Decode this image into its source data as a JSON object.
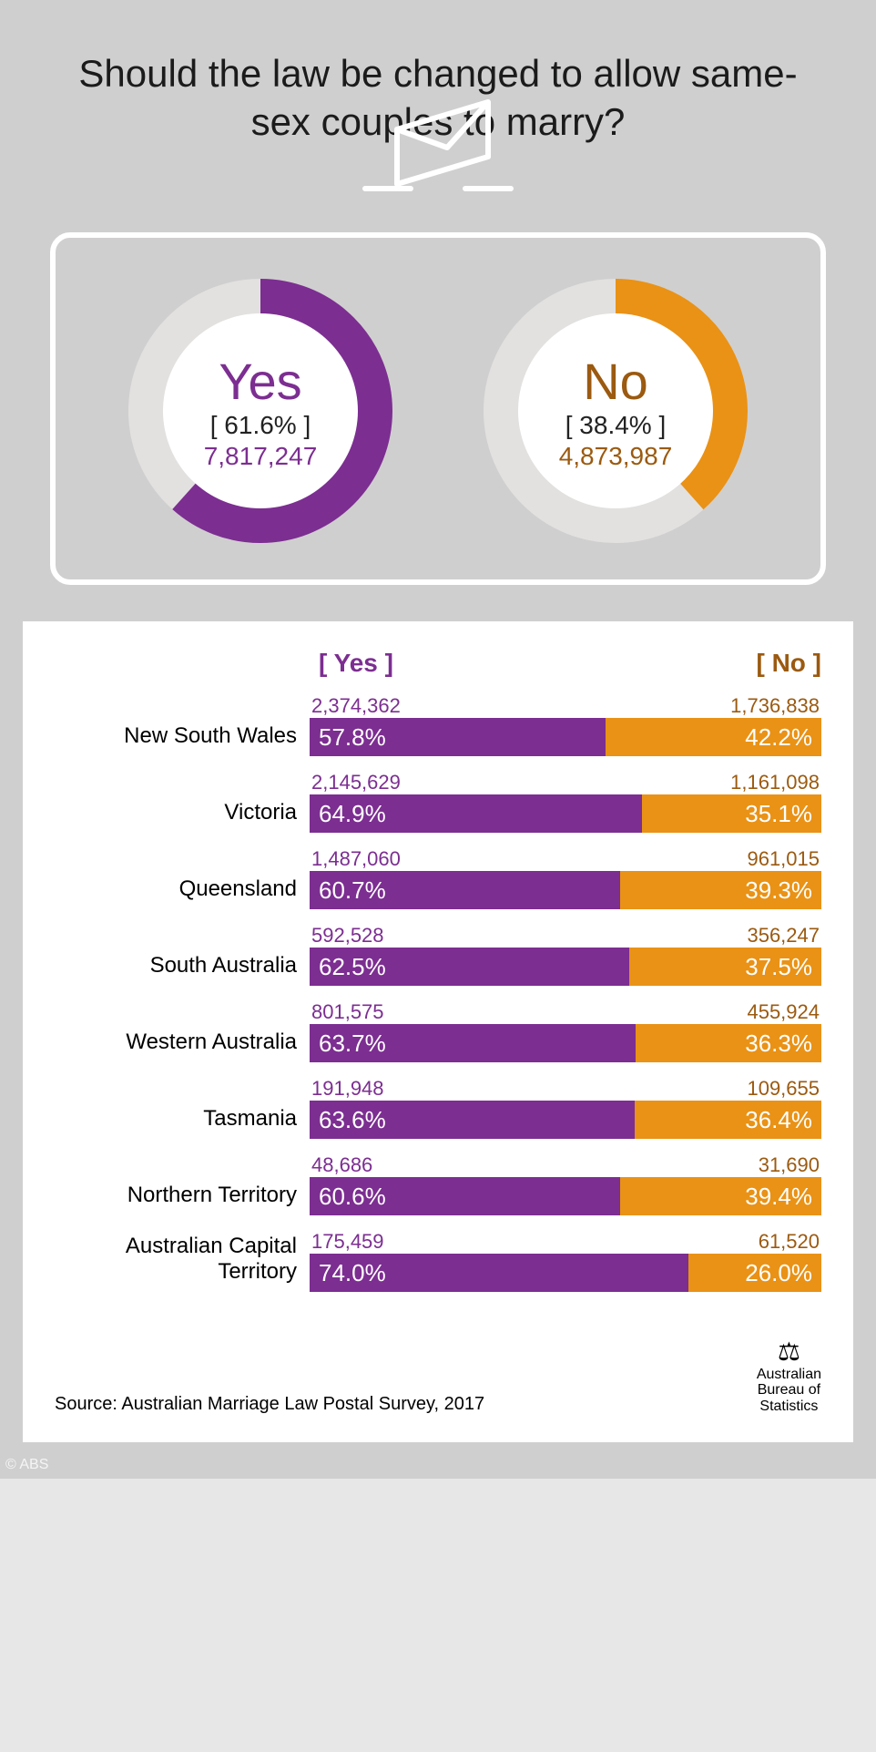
{
  "title_color": "#1b1b1b",
  "title": "Should the law be changed to allow same-sex couples to marry?",
  "yes_color": "#7c2e91",
  "no_color": "#e99216",
  "no_text_color": "#9b5a10",
  "donut_track": "#e2e1e0",
  "donut_bg": "#ffffff",
  "totals": {
    "yes": {
      "label": "Yes",
      "pct_text": "[ 61.6% ]",
      "pct": 61.6,
      "count": "7,817,247"
    },
    "no": {
      "label": "No",
      "pct_text": "[ 38.4% ]",
      "pct": 38.4,
      "count": "4,873,987"
    }
  },
  "table": {
    "yes_header": "[ Yes ]",
    "no_header": "[ No ]",
    "rows": [
      {
        "name": "New South Wales",
        "yes_count": "2,374,362",
        "no_count": "1,736,838",
        "yes_pct": 57.8,
        "no_pct": 42.2
      },
      {
        "name": "Victoria",
        "yes_count": "2,145,629",
        "no_count": "1,161,098",
        "yes_pct": 64.9,
        "no_pct": 35.1
      },
      {
        "name": "Queensland",
        "yes_count": "1,487,060",
        "no_count": "961,015",
        "yes_pct": 60.7,
        "no_pct": 39.3
      },
      {
        "name": "South Australia",
        "yes_count": "592,528",
        "no_count": "356,247",
        "yes_pct": 62.5,
        "no_pct": 37.5
      },
      {
        "name": "Western Australia",
        "yes_count": "801,575",
        "no_count": "455,924",
        "yes_pct": 63.7,
        "no_pct": 36.3
      },
      {
        "name": "Tasmania",
        "yes_count": "191,948",
        "no_count": "109,655",
        "yes_pct": 63.6,
        "no_pct": 36.4
      },
      {
        "name": "Northern Territory",
        "yes_count": "48,686",
        "no_count": "31,690",
        "yes_pct": 60.6,
        "no_pct": 39.4
      },
      {
        "name": "Australian Capital Territory",
        "yes_count": "175,459",
        "no_count": "61,520",
        "yes_pct": 74.0,
        "no_pct": 26.0
      }
    ]
  },
  "source": "Source: Australian Marriage Law Postal Survey, 2017",
  "abs_line1": "Australian",
  "abs_line2": "Bureau of",
  "abs_line3": "Statistics",
  "watermark": "© ABS"
}
